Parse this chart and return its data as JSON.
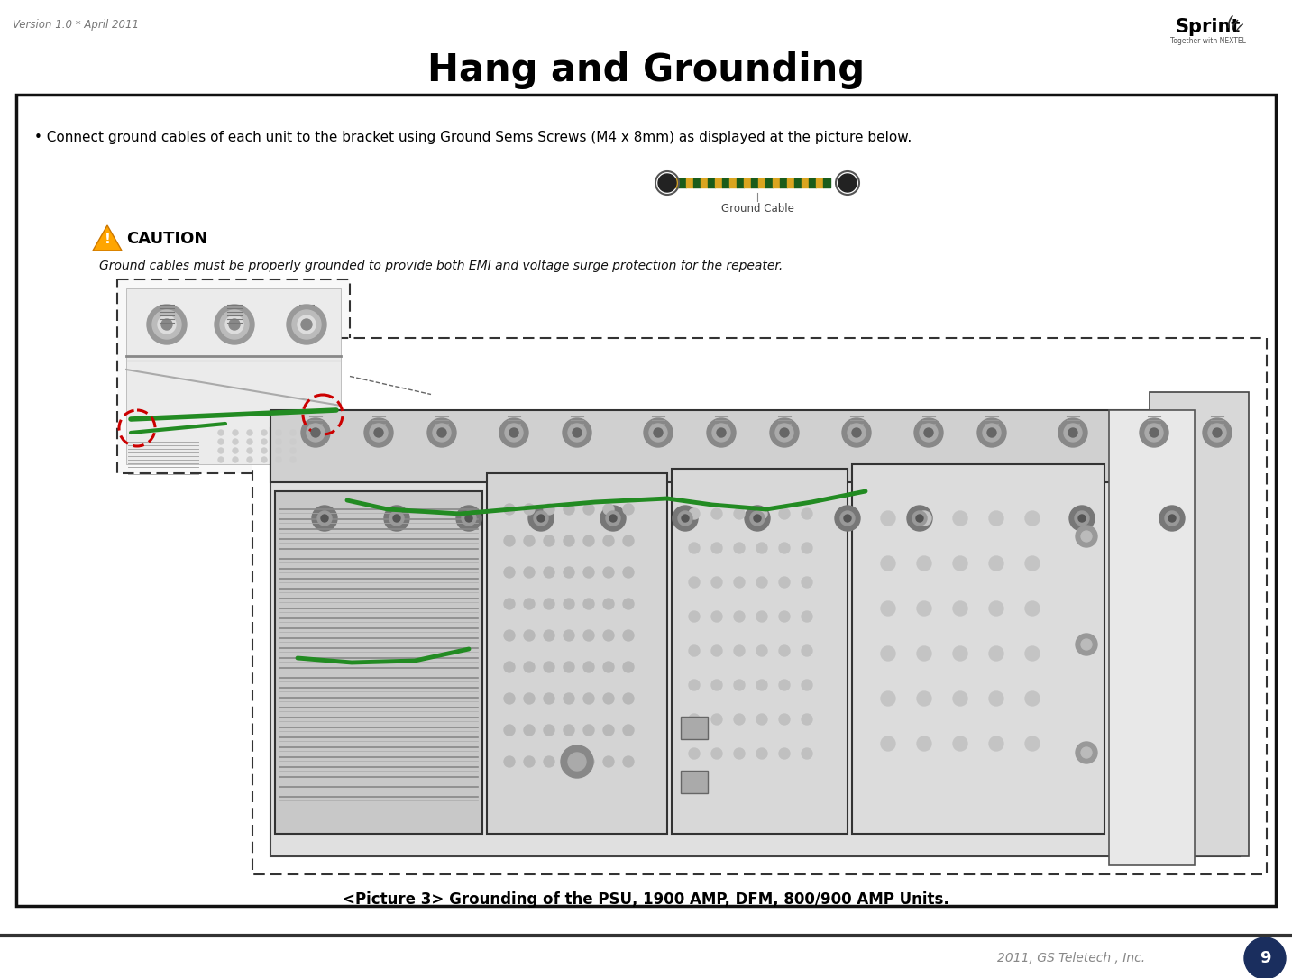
{
  "bg_color": "#ffffff",
  "header_version": "Version 1.0 * April 2011",
  "title": "Hang and Grounding",
  "bullet_text": "• Connect ground cables of each unit to the bracket using Ground Sems Screws (M4 x 8mm) as displayed at the picture below.",
  "ground_cable_label": "Ground Cable",
  "caution_title": "CAUTION",
  "caution_text": "Ground cables must be properly grounded to provide both EMI and voltage surge protection for the repeater.",
  "picture_caption": "<Picture 3> Grounding of the PSU, 1900 AMP, DFM, 800/900 AMP Units.",
  "footer_text": "2011, GS Teletech , Inc.",
  "page_number": "9",
  "title_color": "#000000",
  "header_color": "#777777",
  "footer_color": "#888888",
  "page_num_bg": "#1a2e5e",
  "content_border": "#000000",
  "dashed_border": "#555555",
  "green_cable": "#228B22",
  "red_circle": "#cc0000",
  "yellow_triangle": "#FFA500"
}
